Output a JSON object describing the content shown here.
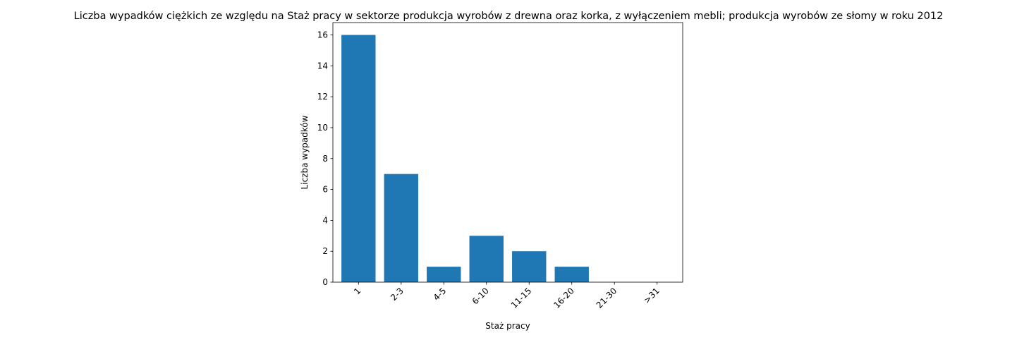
{
  "chart_data": {
    "type": "bar",
    "title": "Liczba wypadków ciężkich ze względu na Staż pracy w sektorze produkcja wyrobów z drewna oraz korka, z wyłączeniem mebli; produkcja wyrobów ze słomy w roku 2012",
    "xlabel": "Staż pracy",
    "ylabel": "Liczba wypadków",
    "categories": [
      "1",
      "2-3",
      "4-5",
      "6-10",
      "11-15",
      "16-20",
      "21-30",
      ">31"
    ],
    "values": [
      16,
      7,
      1,
      3,
      2,
      1,
      0,
      0
    ],
    "ylim": [
      0,
      16.8
    ],
    "yticks": [
      0,
      2,
      4,
      6,
      8,
      10,
      12,
      14,
      16
    ],
    "bar_color": "#1f77b4",
    "grid": false,
    "xtick_rotation": 45
  }
}
